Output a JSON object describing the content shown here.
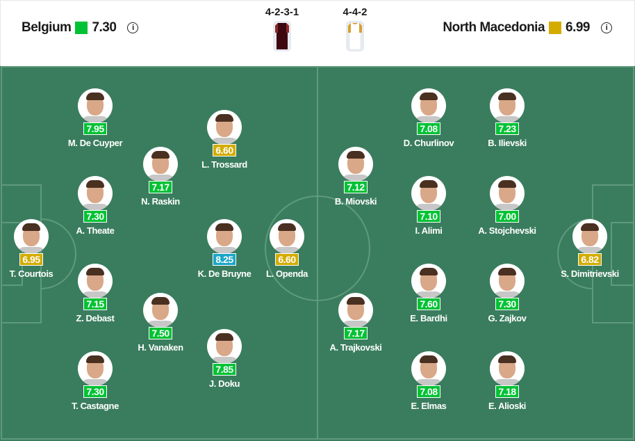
{
  "colors": {
    "green": "#00c234",
    "gold": "#d4ac00",
    "blue": "#1aa6c8",
    "pitch": "#3a7d5e"
  },
  "home": {
    "name": "Belgium",
    "rating": "7.30",
    "rating_color": "#00c234",
    "formation": "4-2-3-1",
    "kit_color": "#3d0810"
  },
  "away": {
    "name": "North Macedonia",
    "rating": "6.99",
    "rating_color": "#d4ac00",
    "formation": "4-4-2",
    "kit_color": "#ffffff"
  },
  "info_icon": "info-icon",
  "players": [
    {
      "name": "M. De Cuyper",
      "rating": "7.95",
      "color": "#00c234",
      "team": "home"
    },
    {
      "name": "L. Trossard",
      "rating": "6.60",
      "color": "#d4ac00",
      "team": "home"
    },
    {
      "name": "N. Raskin",
      "rating": "7.17",
      "color": "#00c234",
      "team": "home"
    },
    {
      "name": "A. Theate",
      "rating": "7.30",
      "color": "#00c234",
      "team": "home"
    },
    {
      "name": "T. Courtois",
      "rating": "6.95",
      "color": "#d4ac00",
      "team": "home"
    },
    {
      "name": "K. De Bruyne",
      "rating": "8.25",
      "color": "#1aa6c8",
      "team": "home"
    },
    {
      "name": "L. Openda",
      "rating": "6.60",
      "color": "#d4ac00",
      "team": "home"
    },
    {
      "name": "Z. Debast",
      "rating": "7.15",
      "color": "#00c234",
      "team": "home"
    },
    {
      "name": "H. Vanaken",
      "rating": "7.50",
      "color": "#00c234",
      "team": "home"
    },
    {
      "name": "J. Doku",
      "rating": "7.85",
      "color": "#00c234",
      "team": "home"
    },
    {
      "name": "T. Castagne",
      "rating": "7.30",
      "color": "#00c234",
      "team": "home"
    },
    {
      "name": "D. Churlinov",
      "rating": "7.08",
      "color": "#00c234",
      "team": "away"
    },
    {
      "name": "B. Ilievski",
      "rating": "7.23",
      "color": "#00c234",
      "team": "away"
    },
    {
      "name": "B. Miovski",
      "rating": "7.12",
      "color": "#00c234",
      "team": "away"
    },
    {
      "name": "I. Alimi",
      "rating": "7.10",
      "color": "#00c234",
      "team": "away"
    },
    {
      "name": "A. Stojchevski",
      "rating": "7.00",
      "color": "#00c234",
      "team": "away"
    },
    {
      "name": "S. Dimitrievski",
      "rating": "6.82",
      "color": "#d4ac00",
      "team": "away"
    },
    {
      "name": "E. Bardhi",
      "rating": "7.60",
      "color": "#00c234",
      "team": "away"
    },
    {
      "name": "G. Zajkov",
      "rating": "7.30",
      "color": "#00c234",
      "team": "away"
    },
    {
      "name": "A. Trajkovski",
      "rating": "7.17",
      "color": "#00c234",
      "team": "away"
    },
    {
      "name": "E. Elmas",
      "rating": "7.08",
      "color": "#00c234",
      "team": "away"
    },
    {
      "name": "E. Alioski",
      "rating": "7.18",
      "color": "#00c234",
      "team": "away"
    }
  ]
}
